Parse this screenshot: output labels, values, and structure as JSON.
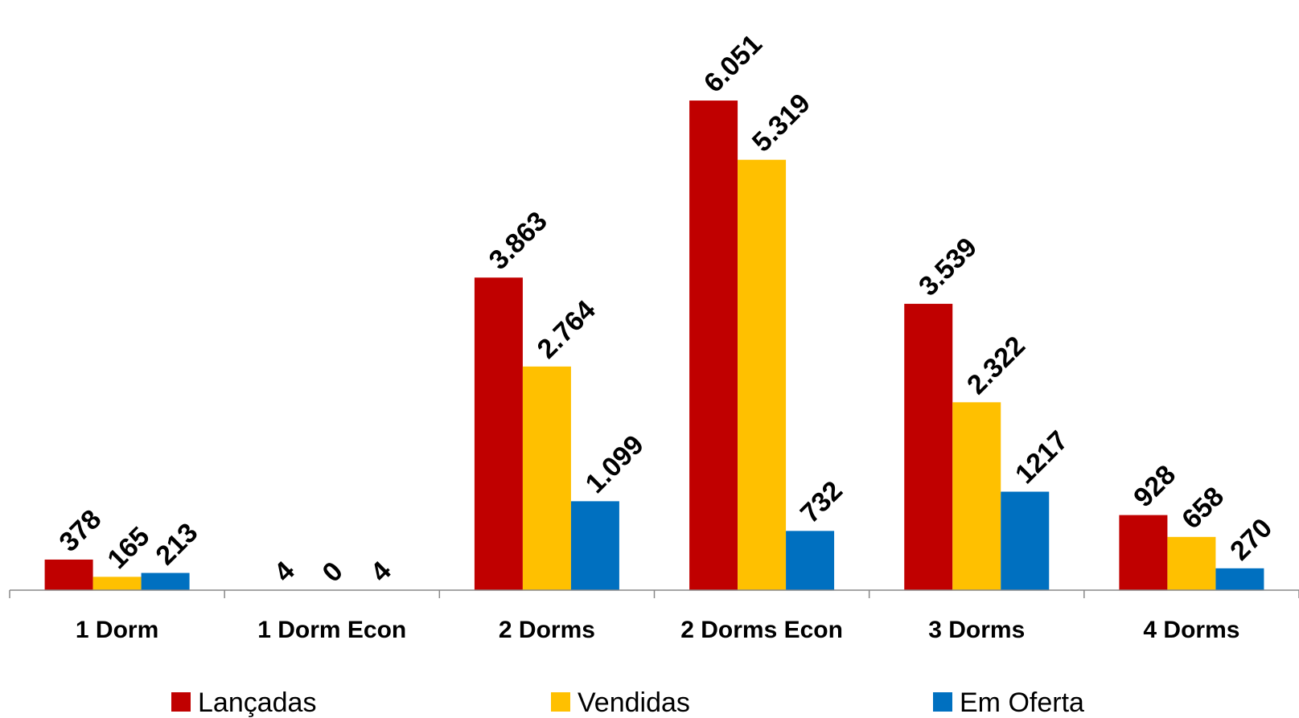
{
  "chart_data": {
    "type": "bar",
    "categories": [
      "1 Dorm",
      "1 Dorm Econ",
      "2 Dorms",
      "2 Dorms Econ",
      "3 Dorms",
      "4 Dorms"
    ],
    "series": [
      {
        "name": "Lançadas",
        "color": "#C00000",
        "values": [
          378,
          4,
          3863,
          6051,
          3539,
          928
        ],
        "labels": [
          "378",
          "4",
          "3.863",
          "6.051",
          "3.539",
          "928"
        ]
      },
      {
        "name": "Vendidas",
        "color": "#FFC000",
        "values": [
          165,
          0,
          2764,
          5319,
          2322,
          658
        ],
        "labels": [
          "165",
          "0",
          "2.764",
          "5.319",
          "2.322",
          "658"
        ]
      },
      {
        "name": "Em Oferta",
        "color": "#0070C0",
        "values": [
          213,
          4,
          1099,
          732,
          1217,
          270
        ],
        "labels": [
          "213",
          "4",
          "1.099",
          "732",
          "1217",
          "270"
        ]
      }
    ],
    "title": "",
    "xlabel": "",
    "ylabel": "",
    "ylim": [
      0,
      6300
    ],
    "grid": false,
    "legend_position": "bottom"
  }
}
